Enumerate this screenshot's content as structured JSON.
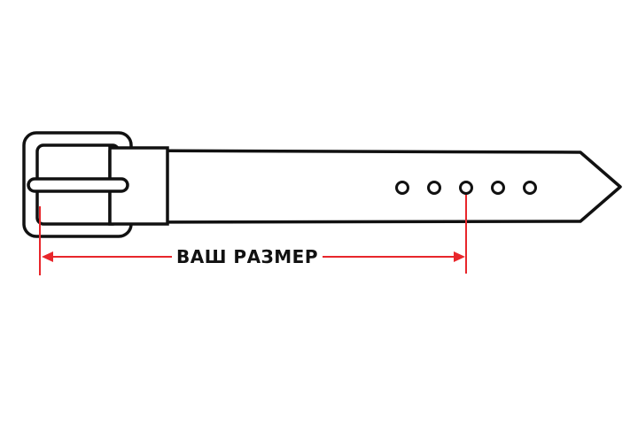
{
  "diagram": {
    "measure_label": "ВАШ РАЗМЕР",
    "hole_count": 5,
    "measured_hole_index": 3
  },
  "colors": {
    "outline": "#111111",
    "measure": "#e8262b",
    "background": "#ffffff"
  }
}
